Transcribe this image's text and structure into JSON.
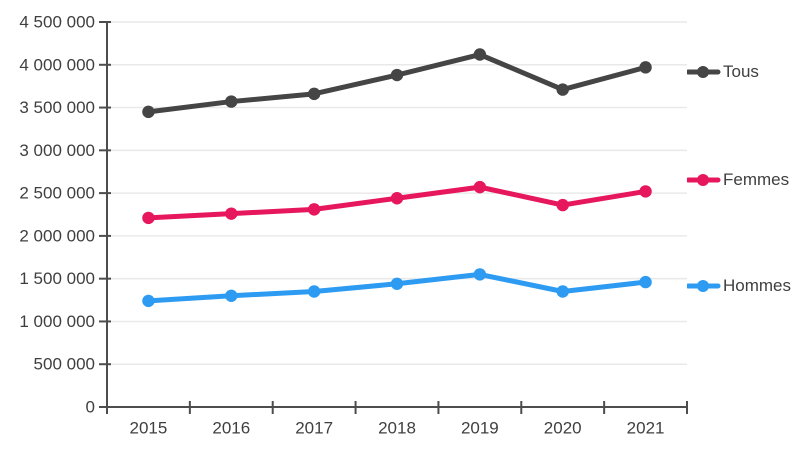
{
  "chart_data": {
    "type": "line",
    "title": "",
    "xlabel": "",
    "ylabel": "",
    "categories": [
      "2015",
      "2016",
      "2017",
      "2018",
      "2019",
      "2020",
      "2021"
    ],
    "series": [
      {
        "name": "Tous",
        "color": "#454545",
        "values": [
          3450000,
          3570000,
          3660000,
          3880000,
          4120000,
          3710000,
          3970000
        ]
      },
      {
        "name": "Femmes",
        "color": "#e6175c",
        "values": [
          2210000,
          2260000,
          2310000,
          2440000,
          2570000,
          2360000,
          2520000
        ]
      },
      {
        "name": "Hommes",
        "color": "#2e9bf2",
        "values": [
          1240000,
          1300000,
          1350000,
          1440000,
          1550000,
          1350000,
          1460000
        ]
      }
    ],
    "ylim": [
      0,
      4500000
    ],
    "ytick_step": 500000,
    "ytick_labels": [
      "0",
      "500 000",
      "1 000 000",
      "1 500 000",
      "2 000 000",
      "2 500 000",
      "3 000 000",
      "3 500 000",
      "4 000 000",
      "4 500 000"
    ],
    "grid": "horizontal",
    "legend_position": "right-outside"
  },
  "colors": {
    "axis": "#4d4d4d",
    "grid": "#e9e9e9",
    "text": "#3f3f3f",
    "background": "#ffffff"
  }
}
